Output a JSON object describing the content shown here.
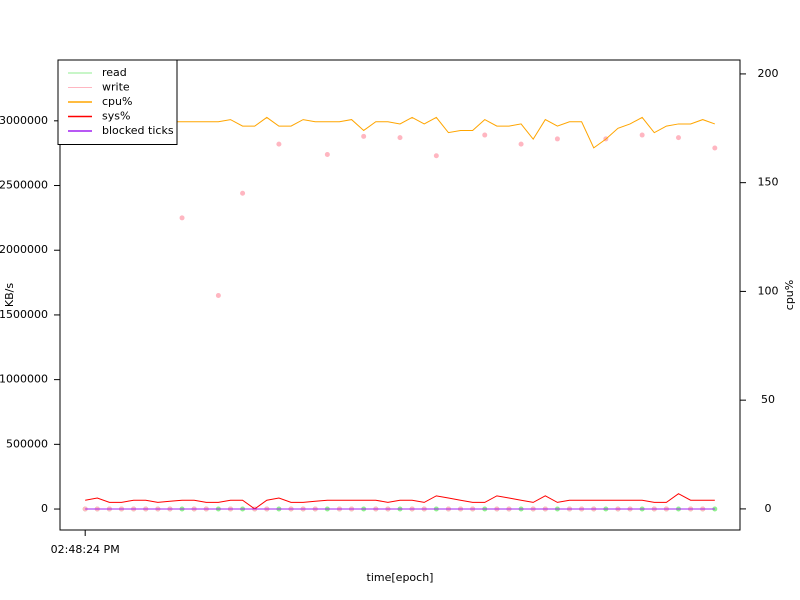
{
  "chart_data": {
    "type": "line",
    "xlabel": "time[epoch]",
    "ylabel": "KB/s",
    "y2label": "cpu%",
    "categories": [
      "02:48:24 PM",
      null,
      null,
      null,
      null,
      null,
      null,
      null,
      null,
      null,
      null,
      null,
      null,
      null,
      null,
      null,
      null,
      null,
      null,
      null,
      null,
      null,
      null,
      null,
      null,
      null,
      null,
      null,
      null,
      null,
      null,
      null,
      null,
      null,
      null,
      null,
      null,
      null,
      null,
      null,
      null,
      null,
      null,
      null,
      null,
      null,
      null,
      null,
      null,
      null,
      null,
      null,
      null
    ],
    "ylim": [
      -162000,
      3470000
    ],
    "yticks": [
      0,
      500000,
      1000000,
      1500000,
      2000000,
      2500000,
      3000000
    ],
    "y2lim": [
      -9.7,
      206.4
    ],
    "y2ticks": [
      0,
      50,
      100,
      150,
      200
    ],
    "legend": "top-left",
    "series": [
      {
        "name": "read",
        "color": "#90ee90",
        "style": "points",
        "values": [
          0,
          0,
          0,
          0,
          0,
          0,
          0,
          0,
          0,
          0,
          0,
          0,
          0,
          0,
          0,
          0,
          0,
          0,
          0,
          0,
          0,
          0,
          0,
          0,
          0,
          0,
          0,
          0,
          0,
          0,
          0,
          0,
          0,
          0,
          0,
          0,
          0,
          0,
          0,
          0,
          0,
          0,
          0,
          0,
          0,
          0,
          0,
          0,
          0,
          0,
          0,
          0,
          0
        ]
      },
      {
        "name": "write",
        "color": "#ffb6c1",
        "style": "points",
        "values": [
          0,
          0,
          0,
          0,
          0,
          0,
          0,
          0,
          2250000,
          0,
          0,
          1650000,
          0,
          2440000,
          0,
          0,
          2820000,
          0,
          0,
          0,
          2740000,
          0,
          0,
          2880000,
          0,
          0,
          2870000,
          0,
          0,
          2730000,
          0,
          0,
          0,
          2890000,
          0,
          0,
          2820000,
          0,
          0,
          2860000,
          0,
          0,
          0,
          2860000,
          0,
          0,
          2890000,
          0,
          0,
          2870000,
          0,
          0,
          2790000
        ]
      },
      {
        "name": "cpu%",
        "color": "#ffa500",
        "style": "line",
        "axis": "y2",
        "values": [
          178,
          178,
          178,
          178,
          178,
          178,
          178,
          178,
          178,
          178,
          178,
          178,
          179,
          176,
          176,
          180,
          176,
          176,
          179,
          178,
          178,
          178,
          179,
          174,
          178,
          178,
          177,
          180,
          177,
          180,
          173,
          174,
          174,
          179,
          176,
          176,
          177,
          170,
          179,
          176,
          178,
          178,
          166,
          170,
          175,
          177,
          180,
          173,
          176,
          177,
          177,
          179,
          177
        ]
      },
      {
        "name": "sys%",
        "color": "#ff0000",
        "style": "line",
        "axis": "y2",
        "values": [
          4,
          5,
          3,
          3,
          4,
          4,
          3,
          3.5,
          4,
          4,
          3,
          3,
          4,
          4,
          0,
          4,
          5,
          3,
          3,
          3.5,
          4,
          4,
          4,
          4,
          4,
          3,
          4,
          4,
          3,
          6,
          5,
          4,
          3,
          3,
          6,
          5,
          4,
          3,
          6,
          3,
          4,
          4,
          4,
          4,
          4,
          4,
          4,
          3,
          3,
          7,
          4,
          4,
          4
        ]
      },
      {
        "name": "blocked ticks",
        "color": "#a020f0",
        "style": "line",
        "values": [
          0,
          0,
          0,
          0,
          0,
          0,
          0,
          0,
          0,
          0,
          0,
          0,
          0,
          0,
          0,
          0,
          0,
          0,
          0,
          0,
          0,
          0,
          0,
          0,
          0,
          0,
          0,
          0,
          0,
          0,
          0,
          0,
          0,
          0,
          0,
          0,
          0,
          0,
          0,
          0,
          0,
          0,
          0,
          0,
          0,
          0,
          0,
          0,
          0,
          0,
          0,
          0,
          0
        ]
      }
    ]
  }
}
